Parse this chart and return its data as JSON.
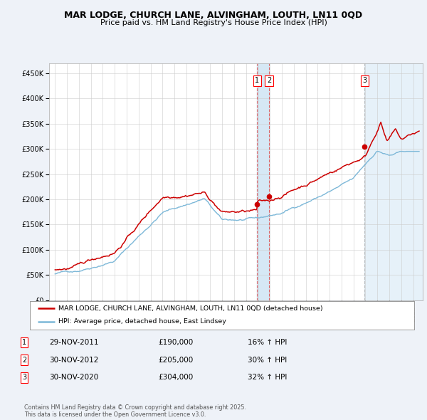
{
  "title": "MAR LODGE, CHURCH LANE, ALVINGHAM, LOUTH, LN11 0QD",
  "subtitle": "Price paid vs. HM Land Registry's House Price Index (HPI)",
  "legend_line1": "MAR LODGE, CHURCH LANE, ALVINGHAM, LOUTH, LN11 0QD (detached house)",
  "legend_line2": "HPI: Average price, detached house, East Lindsey",
  "footnote": "Contains HM Land Registry data © Crown copyright and database right 2025.\nThis data is licensed under the Open Government Licence v3.0.",
  "transactions": [
    {
      "num": 1,
      "date": "29-NOV-2011",
      "price": 190000,
      "hpi_pct": "16% ↑ HPI",
      "year": 2011.92
    },
    {
      "num": 2,
      "date": "30-NOV-2012",
      "price": 205000,
      "hpi_pct": "30% ↑ HPI",
      "year": 2012.92
    },
    {
      "num": 3,
      "date": "30-NOV-2020",
      "price": 304000,
      "hpi_pct": "32% ↑ HPI",
      "year": 2020.92
    }
  ],
  "hpi_color": "#7db8d8",
  "price_color": "#cc0000",
  "background_color": "#eef2f8",
  "plot_bg_color": "#ffffff",
  "grid_color": "#cccccc",
  "shade_color": "#d6e8f5",
  "ylim": [
    0,
    470000
  ],
  "yticks": [
    0,
    50000,
    100000,
    150000,
    200000,
    250000,
    300000,
    350000,
    400000,
    450000
  ],
  "ylabels": [
    "£0",
    "£50K",
    "£100K",
    "£150K",
    "£200K",
    "£250K",
    "£300K",
    "£350K",
    "£400K",
    "£450K"
  ],
  "xlim_start": 1994.5,
  "xlim_end": 2025.8,
  "xticks": [
    1995,
    1996,
    1997,
    1998,
    1999,
    2000,
    2001,
    2002,
    2003,
    2004,
    2005,
    2006,
    2007,
    2008,
    2009,
    2010,
    2011,
    2012,
    2013,
    2014,
    2015,
    2016,
    2017,
    2018,
    2019,
    2020,
    2021,
    2022,
    2023,
    2024,
    2025
  ]
}
